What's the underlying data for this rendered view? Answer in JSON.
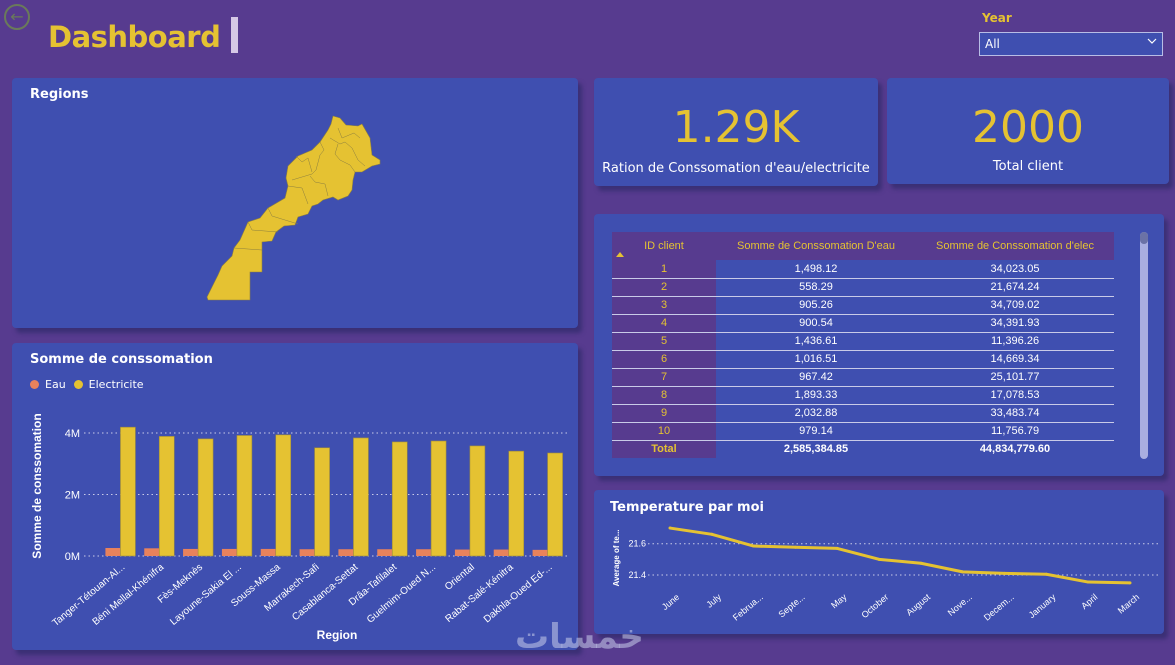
{
  "header": {
    "back_icon": "back-arrow-icon",
    "title": "Dashboard"
  },
  "slicer": {
    "label": "Year",
    "selected": "All",
    "icon": "chevron-down-icon"
  },
  "map": {
    "title": "Regions",
    "country": "Morocco",
    "fill_color": "#e5c232"
  },
  "kpis": [
    {
      "value": "1.29K",
      "label": "Ration de Conssomation d'eau/electricite"
    },
    {
      "value": "2000",
      "label": "Total client"
    }
  ],
  "table": {
    "columns": [
      "ID client",
      "Somme de Conssomation D'eau",
      "Somme de Conssomation d'elec"
    ],
    "rows": [
      [
        "1",
        "1,498.12",
        "34,023.05"
      ],
      [
        "2",
        "558.29",
        "21,674.24"
      ],
      [
        "3",
        "905.26",
        "34,709.02"
      ],
      [
        "4",
        "900.54",
        "34,391.93"
      ],
      [
        "5",
        "1,436.61",
        "11,396.26"
      ],
      [
        "6",
        "1,016.51",
        "14,669.34"
      ],
      [
        "7",
        "967.42",
        "25,101.77"
      ],
      [
        "8",
        "1,893.33",
        "17,078.53"
      ],
      [
        "9",
        "2,032.88",
        "33,483.74"
      ],
      [
        "10",
        "979.14",
        "11,756.79"
      ]
    ],
    "total": [
      "Total",
      "2,585,384.85",
      "44,834,779.60"
    ]
  },
  "chart_data": [
    {
      "type": "bar",
      "title": "Somme de conssomation",
      "xlabel": "Region",
      "ylabel": "Somme de conssomation",
      "ylim": [
        0,
        4400000
      ],
      "yticks": [
        {
          "v": 0,
          "label": "0M"
        },
        {
          "v": 2000000,
          "label": "2M"
        },
        {
          "v": 4000000,
          "label": "4M"
        }
      ],
      "grid": true,
      "legend_position": "top-left",
      "categories": [
        "Tanger-Tétouan-Al...",
        "Béni Mellal-Khénifra",
        "Fès-Meknès",
        "Layoune-Sakia El ...",
        "Souss-Massa",
        "Marrakech-Safi",
        "Casablanca-Settat",
        "Drâa-Tafilalet",
        "Guelmim-Oued N...",
        "Oriental",
        "Rabat-Salé-Kénitra",
        "Dakhla-Oued Ed-..."
      ],
      "series": [
        {
          "name": "Eau",
          "color": "#e8825c",
          "values": [
            260000,
            250000,
            230000,
            230000,
            230000,
            220000,
            220000,
            220000,
            220000,
            210000,
            210000,
            200000
          ]
        },
        {
          "name": "Electricite",
          "color": "#e5c232",
          "values": [
            4190000,
            3890000,
            3810000,
            3920000,
            3940000,
            3520000,
            3840000,
            3710000,
            3740000,
            3580000,
            3410000,
            3350000
          ]
        }
      ]
    },
    {
      "type": "line",
      "title": "Temperature par moi",
      "xlabel": "",
      "ylabel": "Average of te...",
      "ylim": [
        21.33,
        21.72
      ],
      "yticks": [
        {
          "v": 21.4,
          "label": "21.4"
        },
        {
          "v": 21.6,
          "label": "21.6"
        }
      ],
      "grid": true,
      "categories": [
        "June",
        "July",
        "Februa...",
        "Septe...",
        "May",
        "October",
        "August",
        "Nove...",
        "Decem...",
        "January",
        "April",
        "March"
      ],
      "series": [
        {
          "name": "Average of temperature",
          "color": "#e5c232",
          "values": [
            21.7,
            21.66,
            21.585,
            21.577,
            21.57,
            21.5,
            21.475,
            21.42,
            21.41,
            21.405,
            21.355,
            21.35
          ]
        }
      ]
    }
  ],
  "watermark": "خمسات"
}
